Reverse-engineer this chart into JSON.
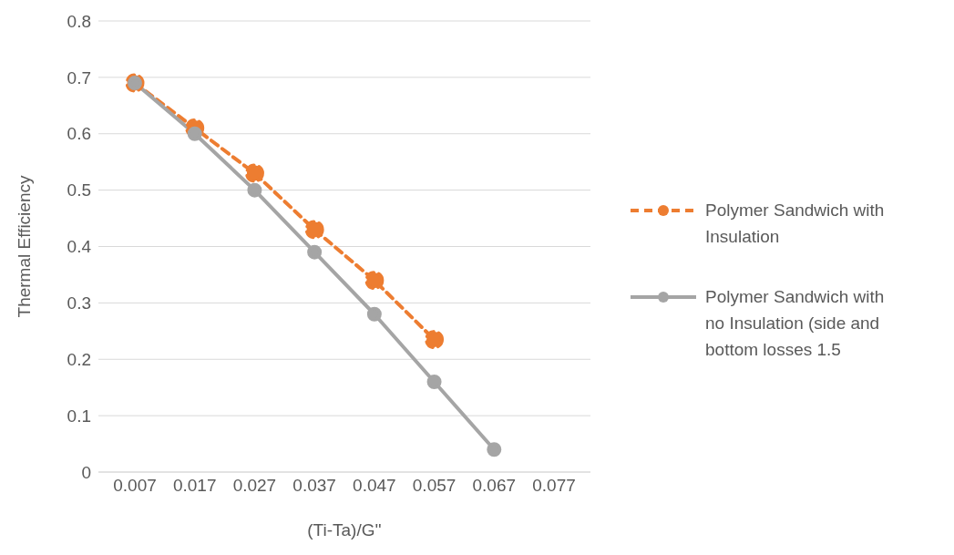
{
  "chart_data": {
    "type": "line",
    "xlabel": "(Ti-Ta)/G''",
    "ylabel": "Thermal Efficiency",
    "categories": [
      "0.007",
      "0.017",
      "0.027",
      "0.037",
      "0.047",
      "0.057",
      "0.067",
      "0.077"
    ],
    "series": [
      {
        "name": "Polymer Sandwich with Insulation",
        "color": "#ed7d31",
        "line_style": "dashed",
        "values": [
          0.69,
          0.61,
          0.53,
          0.43,
          0.34,
          0.235,
          null,
          null
        ]
      },
      {
        "name": "Polymer Sandwich with no Insulation (side and bottom losses 1.5",
        "color": "#a5a5a5",
        "line_style": "solid",
        "values": [
          0.69,
          0.6,
          0.5,
          0.39,
          0.28,
          0.16,
          0.04,
          null
        ]
      }
    ],
    "ylim": [
      0,
      0.8
    ],
    "yticks": [
      0,
      0.1,
      0.2,
      0.3,
      0.4,
      0.5,
      0.6,
      0.7,
      0.8
    ],
    "grid": "y",
    "legend": "right",
    "marker": "circle"
  }
}
